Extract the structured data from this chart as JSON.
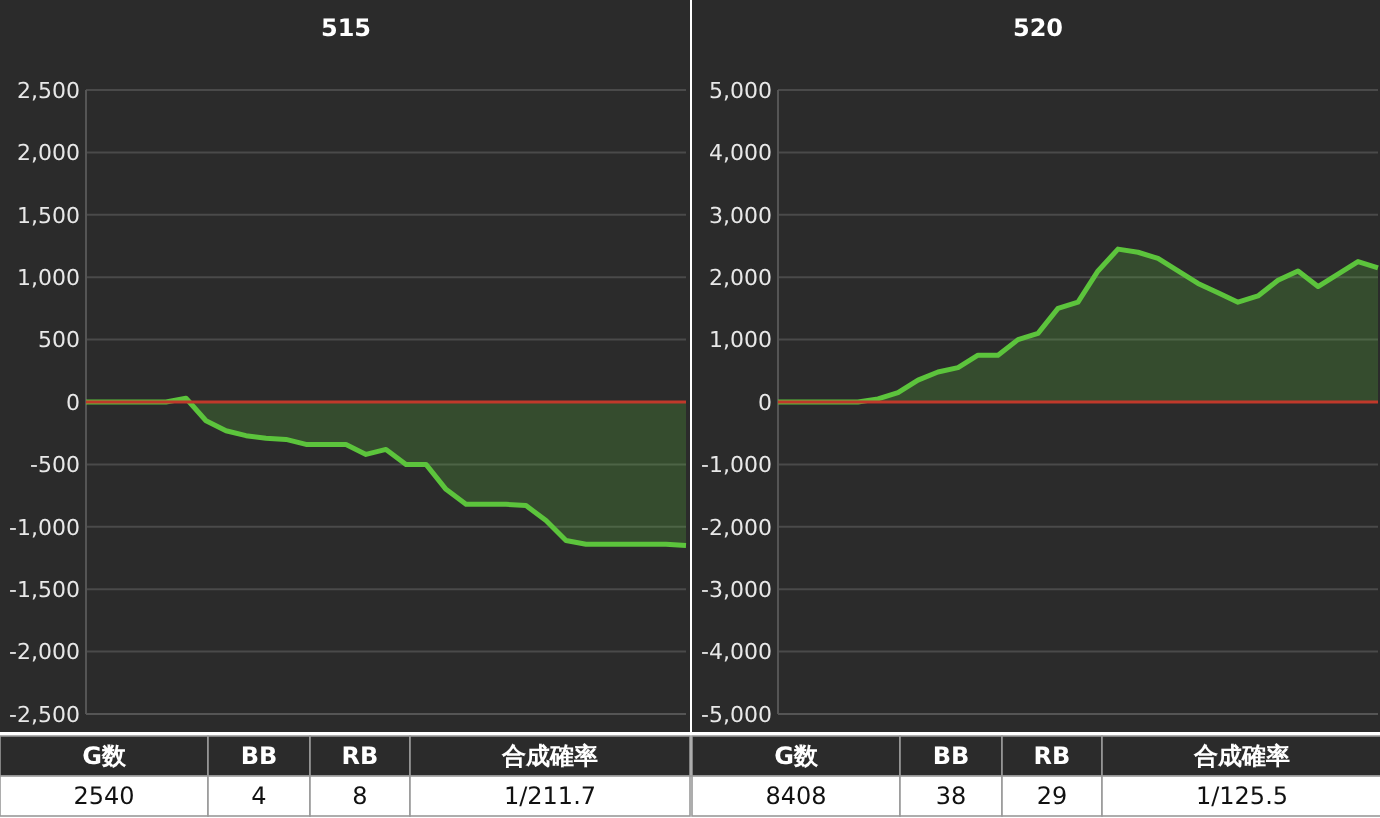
{
  "chart_data": [
    {
      "type": "area",
      "title": "515",
      "categories": [
        null,
        null,
        null,
        null,
        null,
        null,
        null,
        null,
        null,
        null,
        null,
        null,
        null,
        null,
        null,
        null,
        null,
        null,
        null,
        null,
        null,
        null,
        null,
        null,
        null,
        null,
        null,
        null,
        null,
        null,
        null
      ],
      "series": [
        {
          "color": "#5cc43c",
          "values": [
            0,
            0,
            0,
            0,
            0,
            30,
            -150,
            -230,
            -270,
            -290,
            -300,
            -340,
            -340,
            -340,
            -420,
            -380,
            -500,
            -500,
            -700,
            -820,
            -820,
            -820,
            -830,
            -950,
            -1110,
            -1140,
            -1140,
            -1140,
            -1140,
            -1140,
            -1150
          ]
        }
      ],
      "ylim": [
        -2500,
        2500
      ],
      "yticks": [
        {
          "value": -2500,
          "label": "-2,500"
        },
        {
          "value": -2000,
          "label": "-2,000"
        },
        {
          "value": -1500,
          "label": "-1,500"
        },
        {
          "value": -1000,
          "label": "-1,000"
        },
        -500,
        0,
        500,
        {
          "value": 1000,
          "label": "1,000"
        },
        {
          "value": 1500,
          "label": "1,500"
        },
        {
          "value": 2000,
          "label": "2,000"
        },
        {
          "value": 2500,
          "label": "2,500"
        }
      ],
      "grid": "y",
      "tick_labels": "y",
      "ref_lines": [
        {
          "axis": "y",
          "value": 0,
          "color": "#c0392b"
        }
      ],
      "annotations": [
        "G数",
        "BB",
        "RB",
        "合成確率",
        "2540",
        "4",
        "8",
        "1/211.7"
      ]
    },
    {
      "type": "area",
      "title": "520",
      "categories": [
        null,
        null,
        null,
        null,
        null,
        null,
        null,
        null,
        null,
        null,
        null,
        null,
        null,
        null,
        null,
        null,
        null,
        null,
        null,
        null,
        null,
        null,
        null,
        null,
        null,
        null,
        null,
        null,
        null,
        null,
        null
      ],
      "series": [
        {
          "color": "#5cc43c",
          "values": [
            0,
            0,
            0,
            0,
            0,
            50,
            150,
            350,
            480,
            550,
            750,
            750,
            1000,
            1100,
            1500,
            1600,
            2100,
            2450,
            2400,
            2300,
            2100,
            1900,
            1750,
            1600,
            1700,
            1950,
            2100,
            1850,
            2050,
            2250,
            2150
          ]
        }
      ],
      "ylim": [
        -5000,
        5000
      ],
      "yticks": [
        {
          "value": -5000,
          "label": "-5,000"
        },
        {
          "value": -4000,
          "label": "-4,000"
        },
        {
          "value": -3000,
          "label": "-3,000"
        },
        {
          "value": -2000,
          "label": "-2,000"
        },
        {
          "value": -1000,
          "label": "-1,000"
        },
        0,
        {
          "value": 1000,
          "label": "1,000"
        },
        {
          "value": 2000,
          "label": "2,000"
        },
        {
          "value": 3000,
          "label": "3,000"
        },
        {
          "value": 4000,
          "label": "4,000"
        },
        {
          "value": 5000,
          "label": "5,000"
        }
      ],
      "grid": "y",
      "tick_labels": "y",
      "ref_lines": [
        {
          "axis": "y",
          "value": 0,
          "color": "#c0392b"
        }
      ],
      "annotations": [
        "G数",
        "BB",
        "RB",
        "合成確率",
        "8408",
        "38",
        "29",
        "1/125.5"
      ]
    }
  ]
}
